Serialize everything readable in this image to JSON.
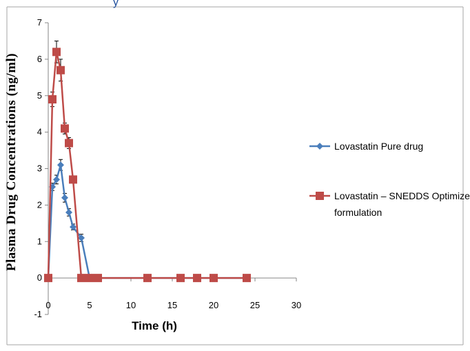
{
  "header_fragment": "y",
  "colors": {
    "series_blue": "#4a7ebb",
    "series_red": "#be4b48",
    "axis": "#868686",
    "border": "#a6a6a6",
    "error_bar": "#000000"
  },
  "chart_data": {
    "type": "line",
    "title": "",
    "xlabel": "Time (h)",
    "ylabel": "Plasma Drug Concentrations (ng/ml)",
    "xlim": [
      0,
      30
    ],
    "ylim": [
      -1,
      7
    ],
    "x_ticks": [
      0,
      5,
      10,
      15,
      20,
      25,
      30
    ],
    "y_ticks": [
      -1,
      0,
      1,
      2,
      3,
      4,
      5,
      6,
      7
    ],
    "grid": false,
    "legend_position": "right",
    "series": [
      {
        "name": "Lovastatin Pure drug",
        "color": "#4a7ebb",
        "marker": "diamond",
        "x": [
          0,
          0.5,
          1,
          1.5,
          2,
          2.5,
          3,
          4,
          5,
          6,
          12,
          16,
          18,
          20,
          24
        ],
        "y": [
          0,
          2.5,
          2.7,
          3.1,
          2.2,
          1.8,
          1.4,
          1.1,
          0,
          0,
          0,
          0,
          0,
          0,
          0
        ],
        "err": [
          0,
          0.1,
          0.12,
          0.15,
          0.12,
          0.1,
          0.08,
          0.1,
          0.04,
          0.04,
          0.04,
          0.04,
          0.04,
          0.04,
          0.04
        ]
      },
      {
        "name": "Lovastatin – SNEDDS Optimized formulation",
        "color": "#be4b48",
        "marker": "square",
        "x": [
          0,
          0.5,
          1,
          1.5,
          2,
          2.5,
          3,
          4,
          5,
          6,
          12,
          16,
          18,
          20,
          24
        ],
        "y": [
          0,
          4.9,
          6.2,
          5.7,
          4.1,
          3.7,
          2.7,
          0,
          0,
          0,
          0,
          0,
          0,
          0,
          0
        ],
        "err": [
          0,
          0.2,
          0.3,
          0.3,
          0.15,
          0.15,
          0.08,
          0.04,
          0.04,
          0.04,
          0.04,
          0.04,
          0.04,
          0.04,
          0.04
        ]
      }
    ],
    "legend": [
      {
        "lines": [
          "Lovastatin Pure drug"
        ]
      },
      {
        "lines": [
          "Lovastatin – SNEDDS Optimized",
          "formulation"
        ]
      }
    ]
  }
}
